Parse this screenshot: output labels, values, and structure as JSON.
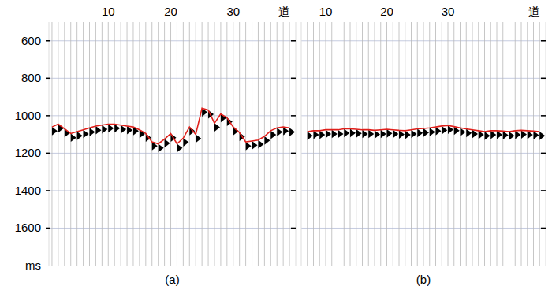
{
  "chart_data": [
    {
      "type": "seismic",
      "label": "(a)",
      "xlabel": "道",
      "ylabel": "ms",
      "xlim": [
        0.5,
        40
      ],
      "xticks": [
        10,
        20,
        30
      ],
      "ylim": [
        500,
        1800
      ],
      "yticks": [
        600,
        800,
        1000,
        1200,
        1400,
        1600
      ],
      "grid": true,
      "tick_labels": true,
      "x": [
        1,
        2,
        3,
        4,
        5,
        6,
        7,
        8,
        9,
        10,
        11,
        12,
        13,
        14,
        15,
        16,
        17,
        18,
        19,
        20,
        21,
        22,
        23,
        24,
        25,
        26,
        27,
        28,
        29,
        30,
        31,
        32,
        33,
        34,
        35,
        36,
        37,
        38,
        39
      ],
      "series": [
        {
          "color": "#e0201b",
          "values": [
            1060,
            1045,
            1070,
            1095,
            1085,
            1075,
            1065,
            1055,
            1050,
            1045,
            1045,
            1050,
            1055,
            1060,
            1075,
            1095,
            1140,
            1150,
            1125,
            1095,
            1150,
            1120,
            1060,
            1100,
            960,
            970,
            1040,
            990,
            1010,
            1060,
            1090,
            1140,
            1135,
            1130,
            1110,
            1080,
            1065,
            1060,
            1065
          ]
        }
      ]
    },
    {
      "type": "seismic",
      "label": "(b)",
      "xlabel": "道",
      "xlim": [
        6,
        46
      ],
      "xticks": [
        10,
        20,
        30
      ],
      "ylim": [
        500,
        1800
      ],
      "yticks": [
        600,
        800,
        1000,
        1200,
        1400,
        1600
      ],
      "grid": true,
      "tick_labels": "x",
      "x": [
        7,
        8,
        9,
        10,
        11,
        12,
        13,
        14,
        15,
        16,
        17,
        18,
        19,
        20,
        21,
        22,
        23,
        24,
        25,
        26,
        27,
        28,
        29,
        30,
        31,
        32,
        33,
        34,
        35,
        36,
        37,
        38,
        39,
        40,
        41,
        42,
        43,
        44,
        45
      ],
      "series": [
        {
          "color": "#e0201b",
          "values": [
            1085,
            1080,
            1080,
            1075,
            1075,
            1075,
            1070,
            1070,
            1072,
            1075,
            1075,
            1078,
            1075,
            1072,
            1075,
            1078,
            1080,
            1075,
            1070,
            1068,
            1065,
            1060,
            1055,
            1052,
            1058,
            1065,
            1070,
            1075,
            1080,
            1085,
            1080,
            1080,
            1082,
            1085,
            1080,
            1078,
            1080,
            1082,
            1085
          ]
        }
      ]
    }
  ]
}
